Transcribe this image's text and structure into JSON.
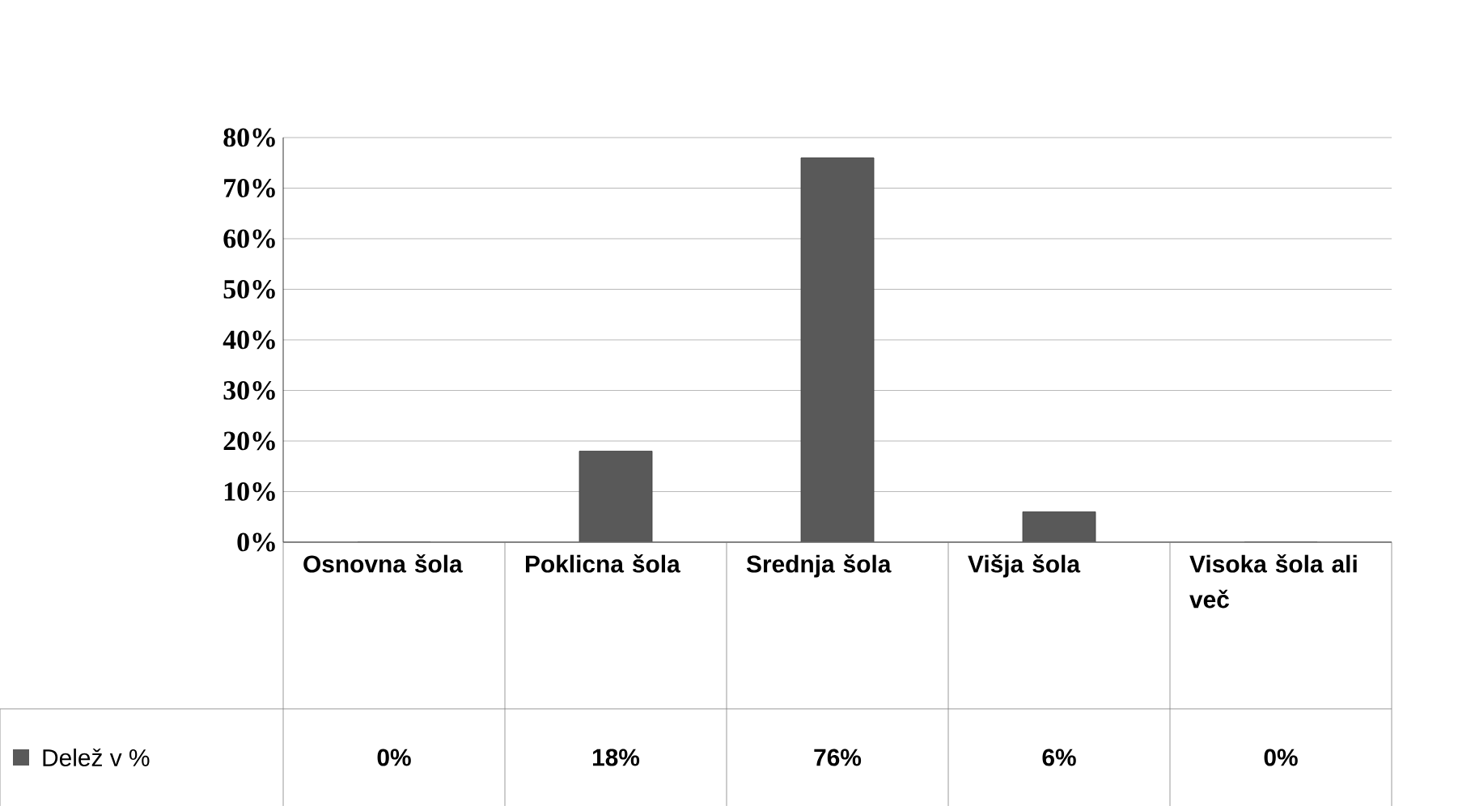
{
  "chart_data": {
    "type": "bar",
    "categories": [
      "Osnovna šola",
      "Poklicna šola",
      "Srednja šola",
      "Višja šola",
      "Visoka šola ali več"
    ],
    "series": [
      {
        "name": "Delež v %",
        "color": "#595959",
        "values": [
          0,
          18,
          76,
          6,
          0
        ]
      }
    ],
    "value_labels": [
      "0%",
      "18%",
      "76%",
      "6%",
      "0%"
    ],
    "ylim": [
      0,
      80
    ],
    "yticks": [
      {
        "value": 0,
        "label": "0%"
      },
      {
        "value": 10,
        "label": "10%"
      },
      {
        "value": 20,
        "label": "20%"
      },
      {
        "value": 30,
        "label": "30%"
      },
      {
        "value": 40,
        "label": "40%"
      },
      {
        "value": 50,
        "label": "50%"
      },
      {
        "value": 60,
        "label": "60%"
      },
      {
        "value": 70,
        "label": "70%"
      },
      {
        "value": 80,
        "label": "80%"
      }
    ],
    "grid": "y",
    "legend": "bottom"
  }
}
